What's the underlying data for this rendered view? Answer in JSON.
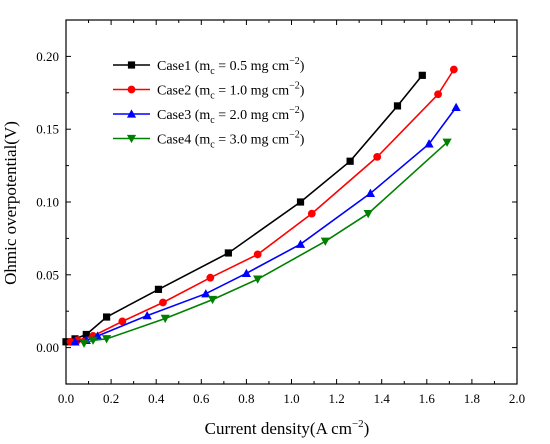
{
  "chart_data": {
    "type": "line",
    "xlabel": "Current density(A cm",
    "xlabel_sup": "−2",
    "xlabel_tail": ")",
    "ylabel": "Ohmic overpotential(V)",
    "xlim": [
      0.0,
      2.0
    ],
    "ylim": [
      -0.025,
      0.225
    ],
    "xticks": [
      "0.0",
      "0.2",
      "0.4",
      "0.6",
      "0.8",
      "1.0",
      "1.2",
      "1.4",
      "1.6",
      "1.8",
      "2.0"
    ],
    "yticks": [
      "0.00",
      "0.05",
      "0.10",
      "0.15",
      "0.20"
    ],
    "grid": false,
    "legend_position": "top-left",
    "series": [
      {
        "name": "Case1 (m",
        "sub": "c",
        "mid": " = 0.5 mg cm",
        "sup": "−2",
        "tail": ")",
        "color": "#000000",
        "marker": "square",
        "x": [
          0.0,
          0.04,
          0.09,
          0.18,
          0.41,
          0.72,
          1.04,
          1.26,
          1.47,
          1.58
        ],
        "y": [
          0.004,
          0.006,
          0.009,
          0.021,
          0.04,
          0.065,
          0.1,
          0.128,
          0.166,
          0.187
        ]
      },
      {
        "name": "Case2 (m",
        "sub": "c",
        "mid": " = 1.0 mg cm",
        "sup": "−2",
        "tail": ")",
        "color": "#ff0000",
        "marker": "circle",
        "x": [
          0.02,
          0.05,
          0.12,
          0.25,
          0.43,
          0.64,
          0.85,
          1.09,
          1.38,
          1.65,
          1.72
        ],
        "y": [
          0.004,
          0.005,
          0.008,
          0.018,
          0.031,
          0.048,
          0.064,
          0.092,
          0.131,
          0.174,
          0.191
        ]
      },
      {
        "name": "Case3 (m",
        "sub": "c",
        "mid": " = 2.0 mg cm",
        "sup": "−2",
        "tail": ")",
        "color": "#0000ff",
        "marker": "triangle-up",
        "x": [
          0.04,
          0.09,
          0.14,
          0.36,
          0.62,
          0.8,
          1.04,
          1.35,
          1.61,
          1.73
        ],
        "y": [
          0.004,
          0.005,
          0.008,
          0.022,
          0.037,
          0.051,
          0.071,
          0.106,
          0.14,
          0.165
        ]
      },
      {
        "name": "Case4 (m",
        "sub": "c",
        "mid": " = 3.0 mg cm",
        "sup": "−2",
        "tail": ")",
        "color": "#008000",
        "marker": "triangle-down",
        "x": [
          0.08,
          0.12,
          0.18,
          0.44,
          0.65,
          0.85,
          1.15,
          1.34,
          1.69
        ],
        "y": [
          0.003,
          0.005,
          0.006,
          0.02,
          0.033,
          0.047,
          0.073,
          0.092,
          0.141
        ]
      }
    ]
  }
}
